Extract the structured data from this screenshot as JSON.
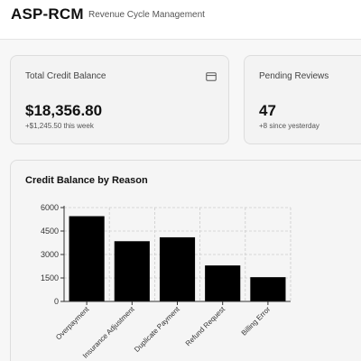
{
  "header": {
    "brand": "ASP-RCM",
    "subtitle": "Revenue Cycle Management"
  },
  "cards": {
    "credit": {
      "label": "Total Credit Balance",
      "value": "$18,356.80",
      "delta": "+$1,245.50 this week",
      "icon": "credit-card-icon"
    },
    "pending": {
      "label": "Pending Reviews",
      "value": "47",
      "delta": "+8 since yesterday"
    }
  },
  "chart": {
    "title": "Credit Balance by Reason"
  },
  "chart_data": {
    "type": "bar",
    "title": "Credit Balance by Reason",
    "categories": [
      "Overpayment",
      "Insurance Adjustment",
      "Duplicate Payment",
      "Refund Request",
      "Billing Error"
    ],
    "values": [
      5450,
      3850,
      4100,
      2300,
      1550
    ],
    "yticks": [
      0,
      1500,
      3000,
      4500,
      6000
    ],
    "ylim": [
      0,
      6000
    ],
    "grid": true,
    "colors": {
      "bar": "#000000",
      "grid": "#cccccc",
      "axis": "#333333"
    }
  }
}
